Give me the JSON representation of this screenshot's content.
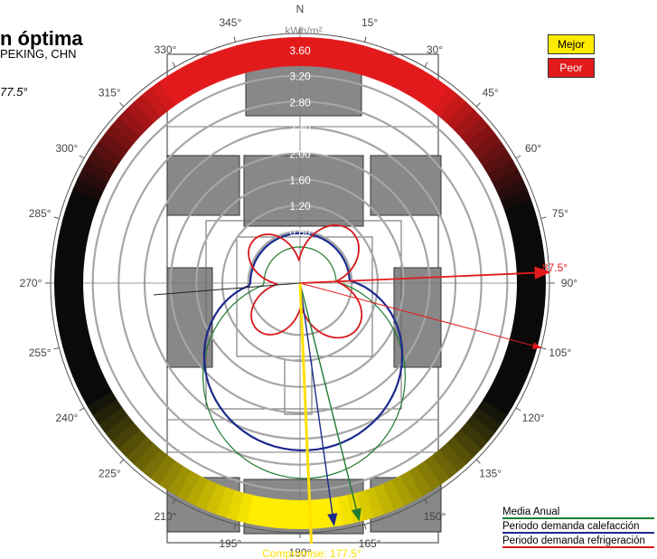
{
  "header": {
    "title": "n óptima",
    "subtitle": "PEKING, CHN",
    "optimal_label": "77.5°"
  },
  "scale_legend": {
    "best": "Mejor",
    "worst": "Peor"
  },
  "series_legend": [
    {
      "label": "Media Anual",
      "color": "#1e7a2e"
    },
    {
      "label": "Periodo demanda calefacción",
      "color": "#1c2a8c"
    },
    {
      "label": "Periodo demanda refrigeración",
      "color": "#d7191c"
    }
  ],
  "compass": {
    "north": "N",
    "angle_labels": [
      "0°",
      "15°",
      "30°",
      "45°",
      "60°",
      "75°",
      "90°",
      "105°",
      "120°",
      "135°",
      "150°",
      "165°",
      "180°",
      "195°",
      "210°",
      "225°",
      "240°",
      "255°",
      "270°",
      "285°",
      "300°",
      "315°",
      "330°",
      "345°"
    ]
  },
  "annotations": {
    "compromise": "Compromise: 177.5°",
    "cooling_optimum": "87.5°"
  },
  "chart_data": {
    "type": "polar",
    "radial_unit": "kWh/m²",
    "radial_ticks": [
      0.8,
      1.2,
      1.6,
      2.0,
      2.4,
      2.8,
      3.2,
      3.6
    ],
    "radial_max": 3.6,
    "compromise_orientation_deg": 177.5,
    "cooling_optimum_deg": 87.5,
    "colors": {
      "best": "#ffec00",
      "worst": "#e31a1c",
      "mid": "#000000"
    },
    "series": [
      {
        "name": "Media Anual",
        "color": "#1e7a2e"
      },
      {
        "name": "Periodo demanda calefacción",
        "color": "#1c2a8c"
      },
      {
        "name": "Periodo demanda refrigeración",
        "color": "#d7191c"
      }
    ]
  }
}
